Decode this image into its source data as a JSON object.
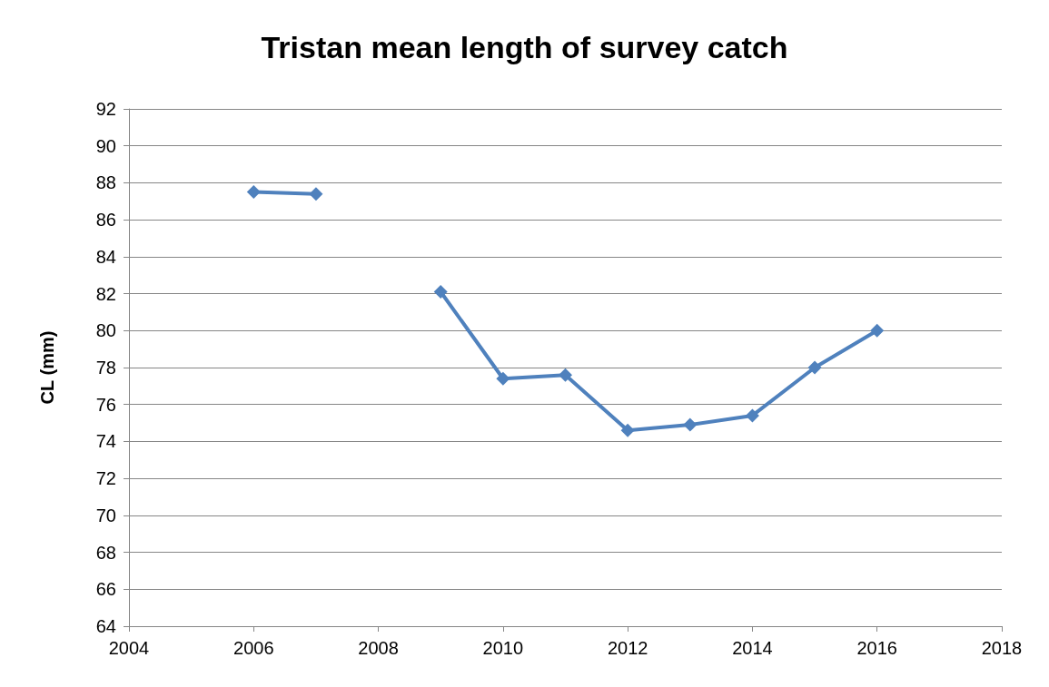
{
  "chart_data": {
    "type": "line",
    "title": "Tristan mean length of survey catch",
    "ylabel": "CL (mm)",
    "x": [
      2006,
      2007,
      2008,
      2009,
      2010,
      2011,
      2012,
      2013,
      2014,
      2015,
      2016
    ],
    "series": [
      {
        "color": "#4f81bd",
        "values": [
          87.5,
          87.4,
          null,
          82.1,
          77.4,
          77.6,
          74.6,
          74.9,
          75.4,
          78.0,
          80.0
        ]
      }
    ],
    "xlim": [
      2004,
      2018
    ],
    "xticks": [
      2004,
      2006,
      2008,
      2010,
      2012,
      2014,
      2016,
      2018
    ],
    "ylim": [
      64,
      92
    ],
    "yticks": [
      64,
      66,
      68,
      70,
      72,
      74,
      76,
      78,
      80,
      82,
      84,
      86,
      88,
      90,
      92
    ],
    "grid": "y",
    "marker": "diamond",
    "line_style": "solid"
  }
}
